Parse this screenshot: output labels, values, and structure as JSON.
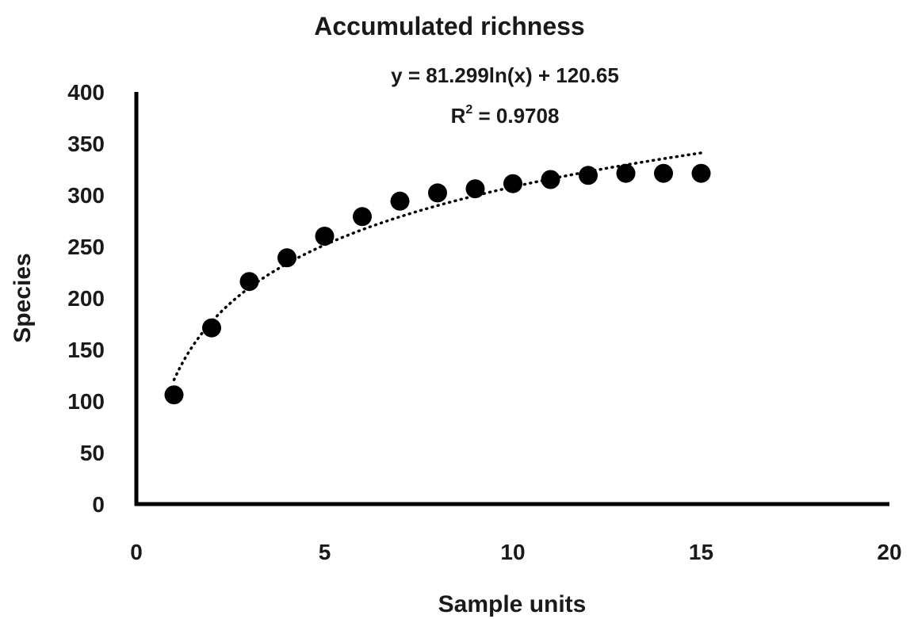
{
  "chart_data": {
    "type": "scatter",
    "title": "Accumulated richness",
    "xlabel": "Sample units",
    "ylabel": "Species",
    "xlim": [
      0,
      20
    ],
    "ylim": [
      0,
      400
    ],
    "x_ticks": [
      0,
      5,
      10,
      15,
      20
    ],
    "y_ticks": [
      0,
      50,
      100,
      150,
      200,
      250,
      300,
      350,
      400
    ],
    "grid": false,
    "legend": "none",
    "series": [
      {
        "x": [
          1,
          2,
          3,
          4,
          5,
          6,
          7,
          8,
          9,
          10,
          11,
          12,
          13,
          14,
          15
        ],
        "y": [
          106,
          171,
          216,
          239,
          260,
          279,
          294,
          302,
          306,
          311,
          315,
          319,
          321,
          321,
          321
        ],
        "marker_color": "#000000"
      }
    ],
    "trendline": {
      "type": "logarithmic",
      "style": "dotted",
      "a": 81.299,
      "b": 120.65,
      "x_range": [
        1,
        15
      ],
      "equation_text": "y = 81.299ln(x) + 120.65",
      "r2_prefix": "R",
      "r2_sup": "2",
      "r2_value_text": " = 0.9708"
    }
  }
}
